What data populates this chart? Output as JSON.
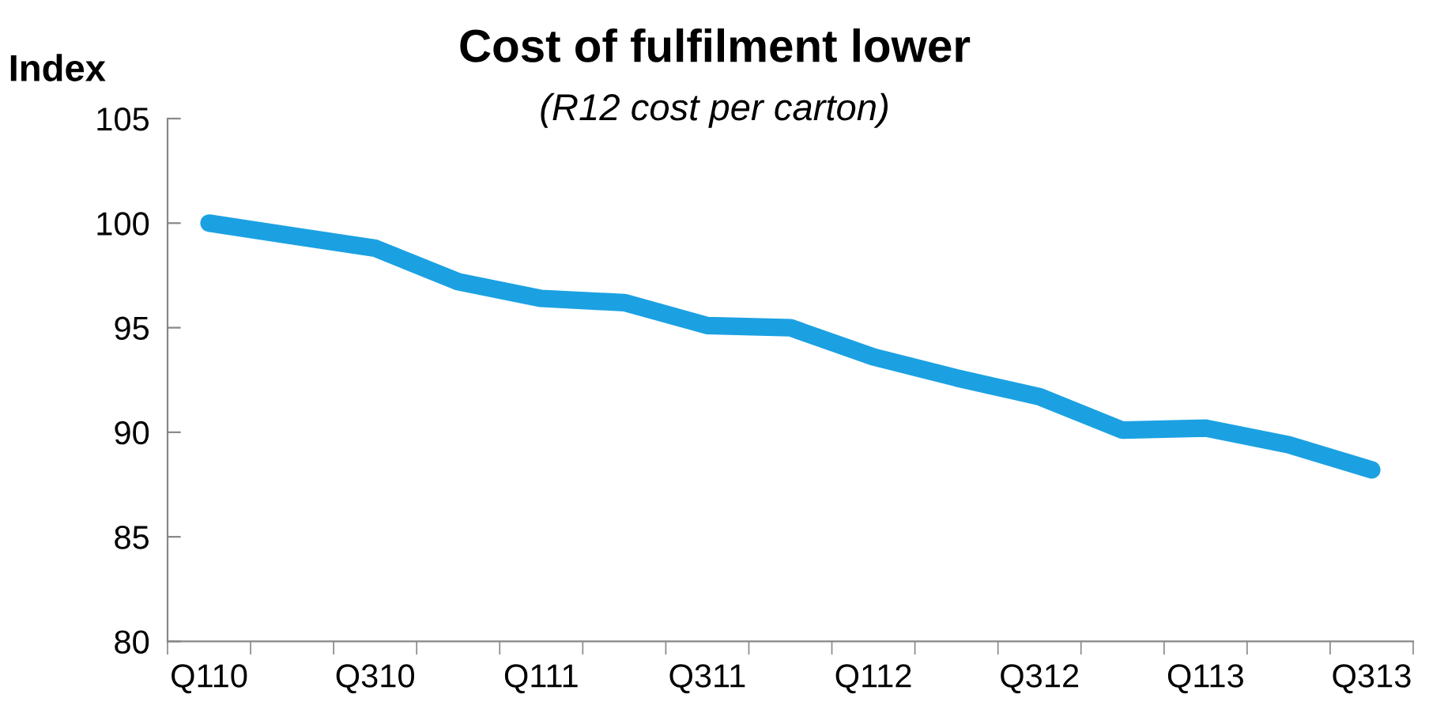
{
  "chart_data": {
    "type": "line",
    "title": "Cost of fulfilment lower",
    "subtitle": "(R12 cost per carton)",
    "ylabel": "Index",
    "categories": [
      "Q110",
      null,
      "Q310",
      null,
      "Q111",
      null,
      "Q311",
      null,
      "Q112",
      null,
      "Q312",
      null,
      "Q113",
      null,
      "Q313"
    ],
    "series": [
      {
        "color": "#1ba1e2",
        "values": [
          100,
          99.4,
          98.8,
          97.2,
          96.4,
          96.2,
          95.1,
          95.0,
          93.6,
          92.6,
          91.7,
          90.1,
          90.2,
          89.4,
          88.2
        ]
      }
    ],
    "ylim": [
      80,
      105
    ],
    "yticks": [
      80,
      85,
      90,
      95,
      100,
      105
    ],
    "grid": false,
    "line_style": "solid"
  }
}
